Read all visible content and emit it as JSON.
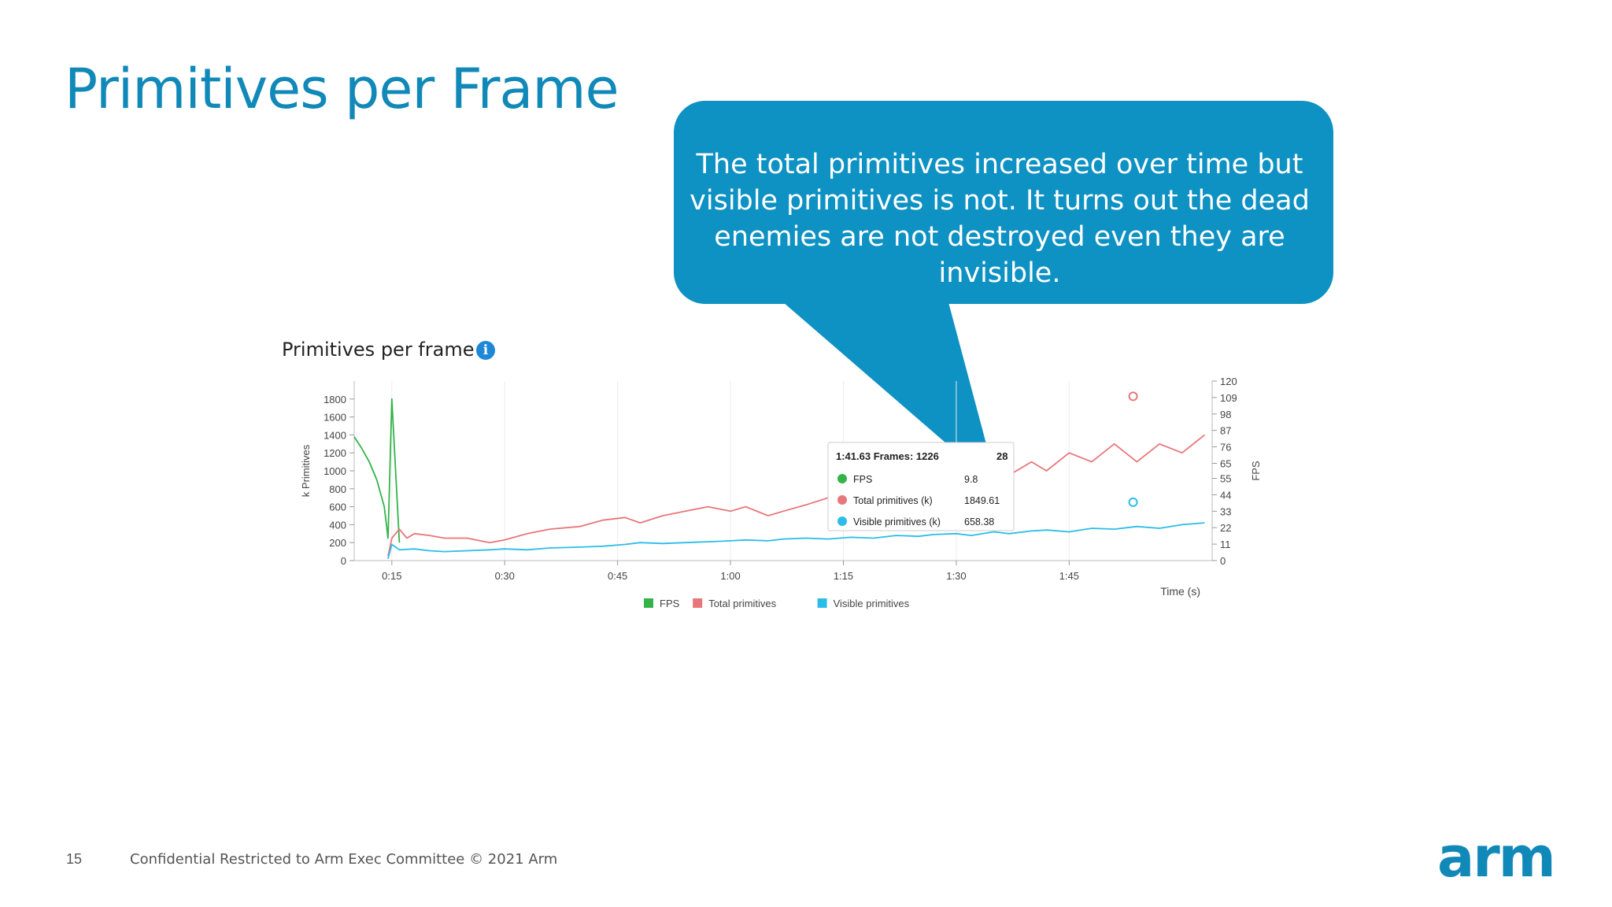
{
  "slide": {
    "title": "Primitives per Frame",
    "callout": "The total primitives increased over time but visible primitives is not. It turns out the dead enemies are not destroyed even they are invisible.",
    "page_number": "15",
    "footer": "Confidential Restricted to Arm Exec Committee © 2021 Arm",
    "logo": "arm",
    "accent_color": "#1189b8",
    "callout_color": "#0e91c3"
  },
  "chart_data": {
    "type": "line",
    "title": "Primitives per frame",
    "info_icon": "info-icon",
    "xlabel": "Time (s)",
    "ylabel": "k Primitives",
    "y2label": "FPS",
    "xlim_seconds": [
      10,
      124
    ],
    "ylim": [
      0,
      2000
    ],
    "y2lim": [
      0,
      120
    ],
    "x_ticks": [
      "0:15",
      "0:30",
      "0:45",
      "1:00",
      "1:15",
      "1:30",
      "1:45"
    ],
    "y_ticks": [
      "0",
      "200",
      "400",
      "600",
      "800",
      "1000",
      "1200",
      "1400",
      "1600",
      "1800"
    ],
    "y2_ticks": [
      "0",
      "11",
      "22",
      "33",
      "44",
      "55",
      "65",
      "76",
      "87",
      "98",
      "109",
      "120"
    ],
    "grid": true,
    "legend_position": "bottom",
    "legend": [
      "FPS",
      "Total primitives",
      "Visible primitives"
    ],
    "series": [
      {
        "name": "Total primitives",
        "color": "#e8767a",
        "x": [
          14.5,
          15,
          16,
          17,
          18,
          20,
          22,
          25,
          28,
          30,
          33,
          36,
          40,
          43,
          46,
          48,
          51,
          54,
          57,
          60,
          62,
          65,
          67,
          70,
          73,
          76,
          79,
          82,
          85,
          87,
          90,
          92,
          95,
          97,
          100,
          102,
          105,
          108,
          111,
          114,
          117,
          120,
          123
        ],
        "values": [
          50,
          250,
          350,
          250,
          300,
          280,
          250,
          250,
          200,
          230,
          300,
          350,
          380,
          450,
          480,
          420,
          500,
          550,
          600,
          550,
          600,
          500,
          550,
          620,
          700,
          800,
          700,
          850,
          800,
          900,
          950,
          900,
          1000,
          950,
          1100,
          1000,
          1200,
          1100,
          1300,
          1100,
          1300,
          1200,
          1400
        ]
      },
      {
        "name": "Visible primitives",
        "color": "#2bbde8",
        "x": [
          14.5,
          15,
          16,
          18,
          20,
          22,
          25,
          28,
          30,
          33,
          36,
          40,
          43,
          46,
          48,
          51,
          54,
          57,
          60,
          62,
          65,
          67,
          70,
          73,
          76,
          79,
          82,
          85,
          87,
          90,
          92,
          95,
          97,
          100,
          102,
          105,
          108,
          111,
          114,
          117,
          120,
          123
        ],
        "values": [
          20,
          180,
          120,
          130,
          110,
          100,
          110,
          120,
          130,
          120,
          140,
          150,
          160,
          180,
          200,
          190,
          200,
          210,
          220,
          230,
          220,
          240,
          250,
          240,
          260,
          250,
          280,
          270,
          290,
          300,
          280,
          320,
          300,
          330,
          340,
          320,
          360,
          350,
          380,
          360,
          400,
          420
        ]
      },
      {
        "name": "FPS",
        "color": "#33b34a",
        "x": [
          10,
          11,
          12,
          13,
          14,
          14.5,
          15,
          16
        ],
        "values": [
          1380,
          1250,
          1100,
          900,
          600,
          250,
          1800,
          200
        ]
      }
    ],
    "tooltip": {
      "header": "1:41.63 Frames: 1226",
      "header_tail": "28",
      "rows": [
        {
          "label": "FPS",
          "value": "9.8",
          "color": "#33b34a"
        },
        {
          "label": "Total primitives (k)",
          "value": "1849.61",
          "color": "#e8767a"
        },
        {
          "label": "Visible primitives (k)",
          "value": "658.38",
          "color": "#2bbde8"
        }
      ]
    }
  }
}
